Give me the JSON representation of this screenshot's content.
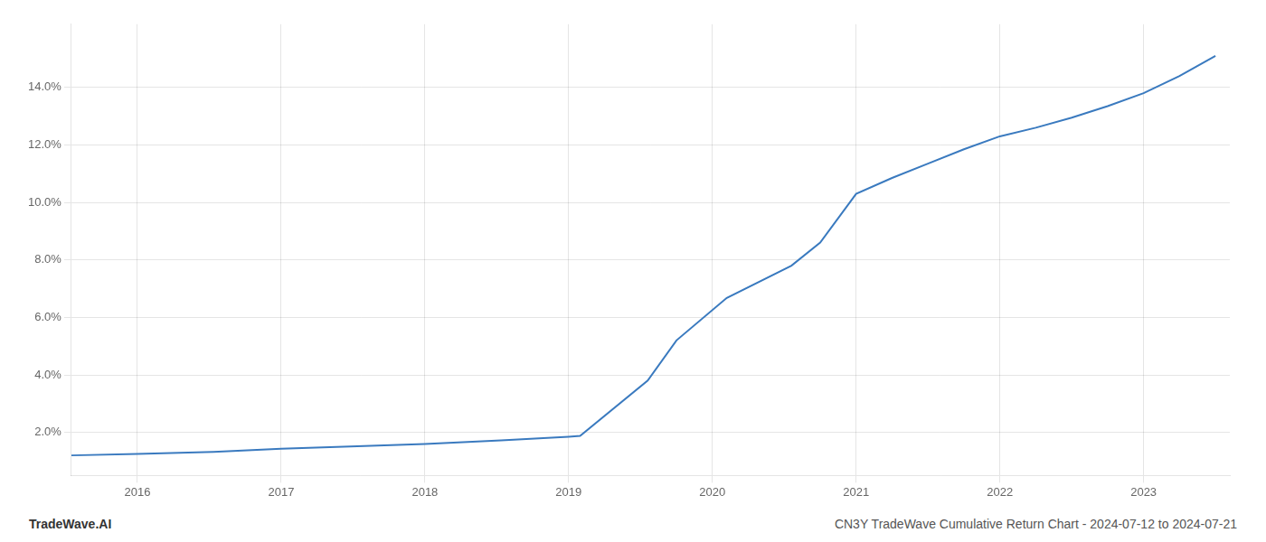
{
  "chart_data": {
    "type": "line",
    "x": [
      2015.54,
      2016.0,
      2016.53,
      2017.0,
      2017.53,
      2018.0,
      2018.53,
      2019.0,
      2019.08,
      2019.55,
      2019.75,
      2020.1,
      2020.55,
      2020.75,
      2021.0,
      2021.25,
      2021.5,
      2021.75,
      2022.0,
      2022.25,
      2022.5,
      2022.75,
      2023.0,
      2023.25,
      2023.5
    ],
    "values": [
      1.2,
      1.25,
      1.32,
      1.43,
      1.52,
      1.6,
      1.72,
      1.85,
      1.88,
      3.8,
      5.2,
      6.68,
      7.8,
      8.6,
      10.3,
      10.85,
      11.35,
      11.85,
      12.3,
      12.6,
      12.95,
      13.35,
      13.8,
      14.4,
      15.1
    ],
    "color": "#3a7abf",
    "xlim": [
      2015.54,
      2023.6
    ],
    "xticks": [
      2016,
      2017,
      2018,
      2019,
      2020,
      2021,
      2022,
      2023
    ],
    "ylim": [
      0.5,
      16.2
    ],
    "yticks": [
      {
        "value": 2.0,
        "label": "2.0%"
      },
      {
        "value": 4.0,
        "label": "4.0%"
      },
      {
        "value": 6.0,
        "label": "6.0%"
      },
      {
        "value": 8.0,
        "label": "8.0%"
      },
      {
        "value": 10.0,
        "label": "10.0%"
      },
      {
        "value": 12.0,
        "label": "12.0%"
      },
      {
        "value": 14.0,
        "label": "14.0%"
      }
    ],
    "grid": true,
    "annotations": [
      "TradeWave.AI",
      "CN3Y TradeWave Cumulative Return Chart - 2024-07-12 to 2024-07-21"
    ]
  }
}
